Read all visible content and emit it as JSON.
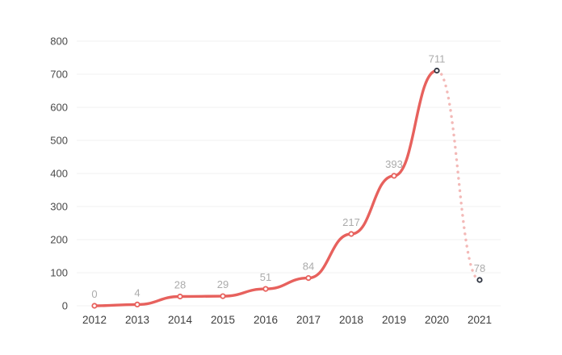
{
  "chart_data": {
    "type": "line",
    "title": "",
    "xlabel": "",
    "ylabel": "",
    "categories": [
      "2012",
      "2013",
      "2014",
      "2015",
      "2016",
      "2017",
      "2018",
      "2019",
      "2020",
      "2021"
    ],
    "values": [
      0,
      4,
      28,
      29,
      51,
      84,
      217,
      393,
      711,
      78
    ],
    "value_labels": [
      "0",
      "4",
      "28",
      "29",
      "51",
      "84",
      "217",
      "393",
      "711",
      "78"
    ],
    "ylim": [
      0,
      800
    ],
    "ytick_step": 100,
    "ytick_labels": [
      "0",
      "100",
      "200",
      "300",
      "400",
      "500",
      "600",
      "700",
      "800"
    ],
    "grid": true,
    "legend_position": "none",
    "smooth": true,
    "solid_segment_end_index": 8,
    "dashed_segment": [
      8,
      9
    ],
    "highlight_marker_indices": [
      8,
      9
    ],
    "colors": {
      "line": "#e7615d",
      "dashed_line": "#f3b9b7",
      "marker_fill": "#ffffff",
      "marker_stroke": "#e7615d",
      "highlight_marker_stroke": "#2e3440",
      "gridline": "#f2f2f2",
      "y_axis_label": "#4a4a4a",
      "x_axis_label": "#3e3e3e",
      "data_label": "#ababab",
      "background": "#ffffff"
    }
  }
}
